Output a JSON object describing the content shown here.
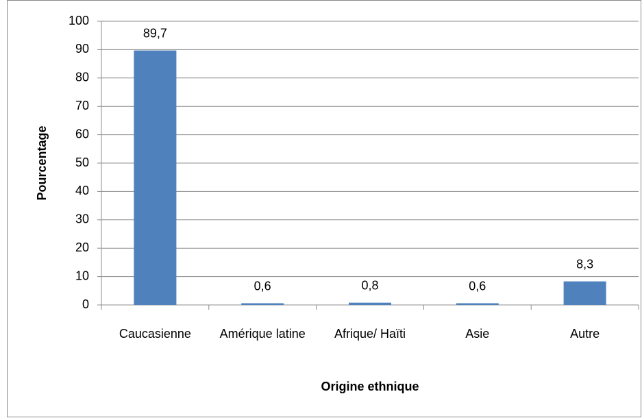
{
  "chart_data": {
    "type": "bar",
    "categories": [
      "Caucasienne",
      "Amérique latine",
      "Afrique/ Haïti",
      "Asie",
      "Autre"
    ],
    "values": [
      89.7,
      0.6,
      0.8,
      0.6,
      8.3
    ],
    "value_labels": [
      "89,7",
      "0,6",
      "0,8",
      "0,6",
      "8,3"
    ],
    "color": "#4f81bd",
    "ylim": [
      0,
      100
    ],
    "yticks": [
      0,
      10,
      20,
      30,
      40,
      50,
      60,
      70,
      80,
      90,
      100
    ],
    "grid": true,
    "y_label": "Pourcentage",
    "x_label": "Origine ethnique"
  }
}
